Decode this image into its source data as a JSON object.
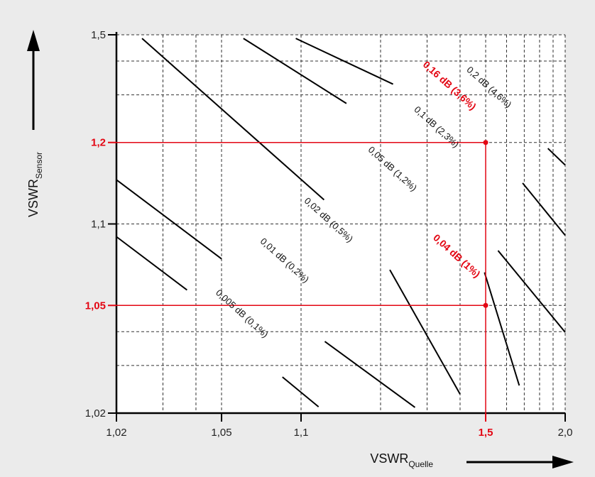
{
  "chart_data": {
    "type": "line",
    "xlabel": "VSWR",
    "xlabel_subscript": "Quelle",
    "ylabel": "VSWR",
    "ylabel_subscript": "Sensor",
    "x_scale": "log(VSWR-1)",
    "y_scale": "log(VSWR-1)",
    "xlim": [
      1.02,
      2.0
    ],
    "ylim": [
      1.02,
      1.5
    ],
    "grid": true,
    "x_ticks": [
      {
        "value": 1.02,
        "label": "1,02",
        "highlight": false
      },
      {
        "value": 1.05,
        "label": "1,05",
        "highlight": false
      },
      {
        "value": 1.1,
        "label": "1,1",
        "highlight": false
      },
      {
        "value": 1.5,
        "label": "1,5",
        "highlight": true
      },
      {
        "value": 2.0,
        "label": "2,0",
        "highlight": false
      }
    ],
    "y_ticks": [
      {
        "value": 1.02,
        "label": "1,02",
        "highlight": false
      },
      {
        "value": 1.05,
        "label": "1,05",
        "highlight": true
      },
      {
        "value": 1.1,
        "label": "1,1",
        "highlight": false
      },
      {
        "value": 1.2,
        "label": "1,2",
        "highlight": true
      },
      {
        "value": 1.5,
        "label": "1,5",
        "highlight": false
      }
    ],
    "x_grid": [
      1.02,
      1.03,
      1.04,
      1.05,
      1.1,
      1.2,
      1.3,
      1.4,
      1.5,
      1.6,
      1.7,
      1.8,
      1.9,
      2.0
    ],
    "y_grid": [
      1.02,
      1.03,
      1.04,
      1.05,
      1.1,
      1.2,
      1.3,
      1.4,
      1.5
    ],
    "series": [
      {
        "label": "0,005 dB (0,1%)",
        "highlight": false,
        "segments": [
          [
            [
              1.02,
              1.0897
            ],
            [
              1.037,
              1.057
            ]
          ],
          [
            [
              1.085,
              1.0272
            ],
            [
              1.1165,
              1.0211
            ]
          ]
        ]
      },
      {
        "label": "0,01 dB (0,2%)",
        "highlight": false,
        "segments": [
          [
            [
              1.02,
              1.1456
            ],
            [
              1.05,
              1.0743
            ]
          ],
          [
            [
              1.123,
              1.0368
            ],
            [
              1.27,
              1.021
            ]
          ]
        ]
      },
      {
        "label": "0,02 dB (0,5%)",
        "highlight": false,
        "segments": [
          [
            [
              1.025,
              1.4848
            ],
            [
              1.1222,
              1.1228
            ]
          ],
          [
            [
              1.2168,
              1.0677
            ],
            [
              1.4,
              1.0235
            ]
          ]
        ]
      },
      {
        "label": "0,04 dB (1%)",
        "highlight": true,
        "segments": [
          [
            [
              1.0605,
              1.4848
            ],
            [
              1.1485,
              1.2788
            ]
          ],
          [
            [
              1.495,
              1.0662
            ],
            [
              1.67,
              1.0253
            ]
          ]
        ]
      },
      {
        "label": "0,05 dB (1,2%)",
        "highlight": false,
        "segments": [
          [
            [
              1.0955,
              1.4848
            ],
            [
              1.223,
              1.3285
            ]
          ],
          [
            [
              1.557,
              1.0797
            ],
            [
              2.0,
              1.0398
            ]
          ]
        ]
      },
      {
        "label": "0,1 dB (2,3%)",
        "highlight": false,
        "segments": [
          [
            [
              1.69,
              1.1416
            ],
            [
              2.0,
              1.0908
            ]
          ]
        ]
      },
      {
        "label": "0,16 dB (3,6%)",
        "highlight": true,
        "segments": []
      },
      {
        "label": "0,2 dB (4,6%)",
        "highlight": false,
        "segments": [
          [
            [
              1.86,
              1.1902
            ],
            [
              2.0,
              1.1651
            ]
          ]
        ]
      }
    ],
    "reference_lines": [
      {
        "axis": "y",
        "value": 1.2,
        "from": 1.02,
        "to": 1.5
      },
      {
        "axis": "x",
        "value": 1.5,
        "from": 1.2,
        "to": 1.02
      },
      {
        "axis": "y",
        "value": 1.05,
        "from": 1.02,
        "to": 1.5
      }
    ],
    "reference_points": [
      {
        "x": 1.5,
        "y": 1.2
      },
      {
        "x": 1.5,
        "y": 1.05
      }
    ]
  },
  "colors": {
    "background": "#ebebeb",
    "plot_background": "#ffffff",
    "grid": "#333333",
    "curve": "#000000",
    "highlight": "#e30613"
  }
}
